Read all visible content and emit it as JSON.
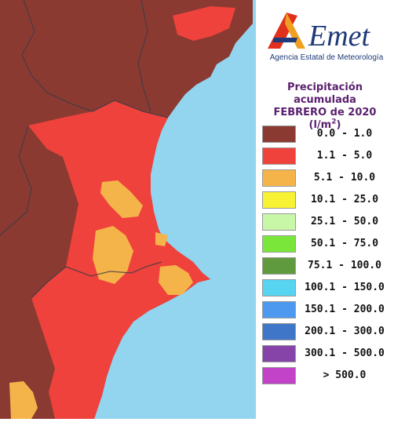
{
  "logo": {
    "text": "Agencia Estatal de Meteorología"
  },
  "legend": {
    "title_line1": "Precipitación acumulada",
    "title_line2": "FEBRERO de 2020",
    "unit_prefix": "(l/m",
    "unit_sup": "2",
    "unit_suffix": ")",
    "items": [
      {
        "label": "0.0 - 1.0",
        "color": "#8b3a32"
      },
      {
        "label": "1.1 - 5.0",
        "color": "#f0423c"
      },
      {
        "label": "5.1 - 10.0",
        "color": "#f5b44a"
      },
      {
        "label": "10.1 - 25.0",
        "color": "#f7f233"
      },
      {
        "label": "25.1 - 50.0",
        "color": "#c8f7a8"
      },
      {
        "label": "50.1 - 75.0",
        "color": "#7be63a"
      },
      {
        "label": "75.1 - 100.0",
        "color": "#5f9a3e"
      },
      {
        "label": "100.1 - 150.0",
        "color": "#56d4f0"
      },
      {
        "label": "150.1 - 200.0",
        "color": "#4d99f0"
      },
      {
        "label": "200.1 - 300.0",
        "color": "#3f76c8"
      },
      {
        "label": "300.1 - 500.0",
        "color": "#8644a8"
      },
      {
        "label": "> 500.0",
        "color": "#c243c7"
      }
    ]
  },
  "map": {
    "sea_color": "#93d4ee",
    "land_dry_color": "#8b3a32",
    "land_low_color": "#f0423c",
    "land_mid_color": "#f5b44a"
  }
}
